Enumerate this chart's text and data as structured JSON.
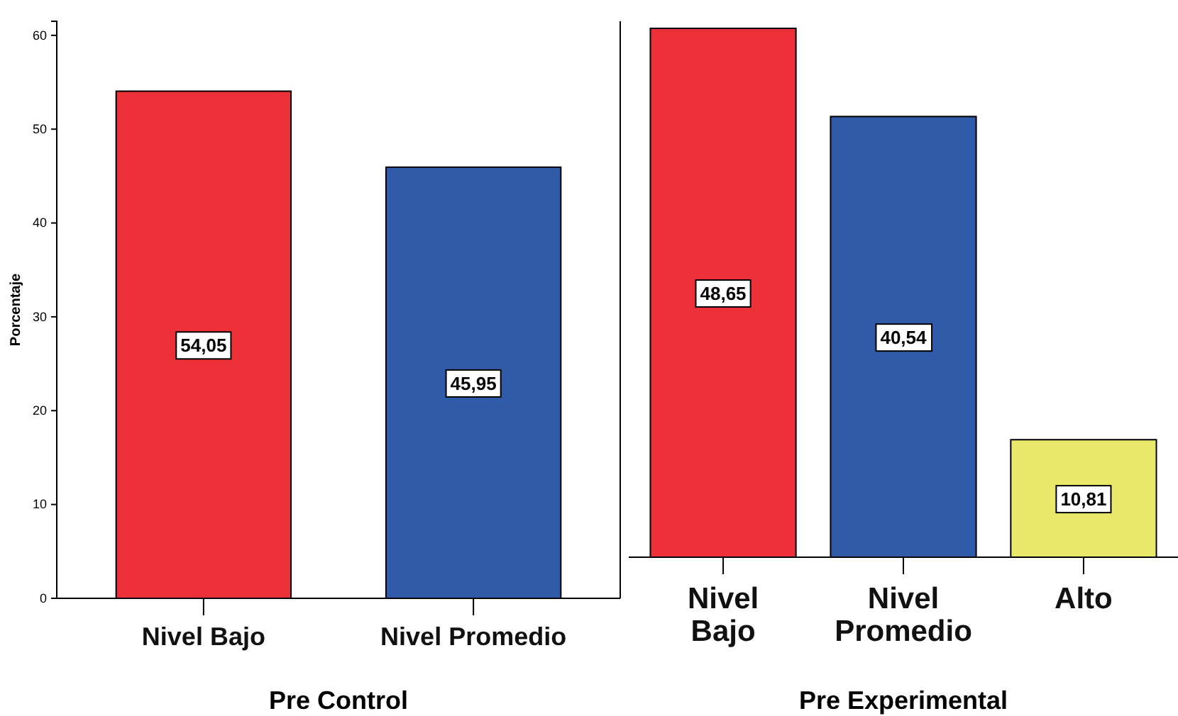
{
  "chart_data": [
    {
      "type": "bar",
      "xlabel": "Pre Control",
      "ylabel": "Porcentaje",
      "categories": [
        "Nivel Bajo",
        "Nivel Promedio"
      ],
      "values": [
        54.05,
        45.95
      ],
      "colors": [
        "#ec3038",
        "#2f5ba8"
      ],
      "ylim": [
        0,
        61.5
      ],
      "yticks": [
        0,
        10,
        20,
        30,
        40,
        50,
        60
      ],
      "value_labels": [
        "54,05",
        "45,95"
      ]
    },
    {
      "type": "bar",
      "xlabel": "Pre Experimental",
      "categories": [
        "Nivel Bajo",
        "Nivel Promedio",
        "Alto"
      ],
      "values": [
        48.65,
        40.54,
        10.81
      ],
      "colors": [
        "#ec3038",
        "#2f5ba8",
        "#e9e86a"
      ],
      "value_labels": [
        "48,65",
        "40,54",
        "10,81"
      ],
      "tick_labels": "x"
    }
  ]
}
